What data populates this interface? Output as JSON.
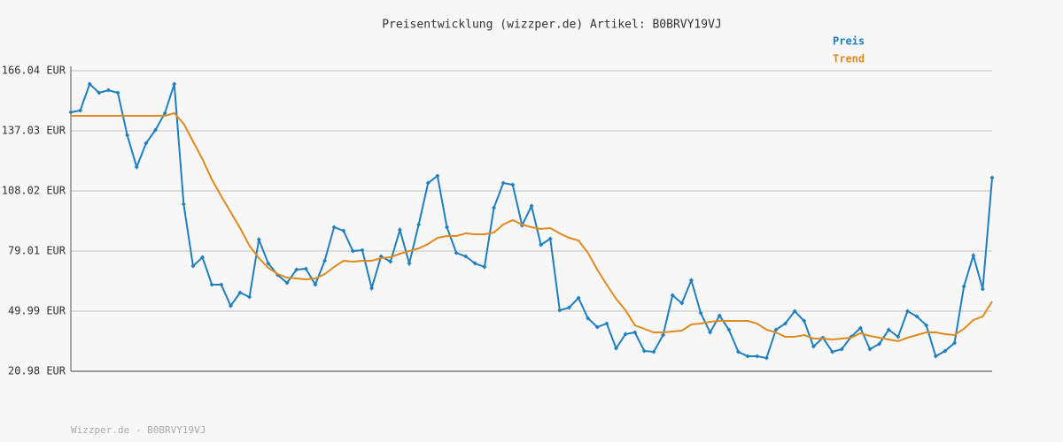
{
  "chart_data": {
    "type": "line",
    "title": "Preisentwicklung (wizzper.de) Artikel: B0BRVY19VJ",
    "footer": "Wizzper.de - B0BRVY19VJ",
    "ylim": [
      20.98,
      166.04
    ],
    "yticks": [
      {
        "value": 20.98,
        "label": "20.98 EUR"
      },
      {
        "value": 49.99,
        "label": "49.99 EUR"
      },
      {
        "value": 79.01,
        "label": "79.01 EUR"
      },
      {
        "value": 108.02,
        "label": "108.02 EUR"
      },
      {
        "value": 137.03,
        "label": "137.03 EUR"
      },
      {
        "value": 166.04,
        "label": "166.04 EUR"
      }
    ],
    "grid": true,
    "legend": "top-right",
    "series": [
      {
        "name": "Preis",
        "color": "#1f7fbf",
        "markers": true,
        "values": [
          145.99,
          146.84,
          159.64,
          155.37,
          156.65,
          155.37,
          134.89,
          119.54,
          131.05,
          137.45,
          145.56,
          159.64,
          101.62,
          71.75,
          76.02,
          62.79,
          62.79,
          52.55,
          58.95,
          56.82,
          84.55,
          73.03,
          67.48,
          63.64,
          70.04,
          70.47,
          62.79,
          74.31,
          90.52,
          88.82,
          79.0,
          79.43,
          61.08,
          76.44,
          73.88,
          89.24,
          73.03,
          91.8,
          111.86,
          115.27,
          90.52,
          78.15,
          76.44,
          73.03,
          71.32,
          99.91,
          111.86,
          111.0,
          91.38,
          100.76,
          81.99,
          84.98,
          50.42,
          51.7,
          56.39,
          46.58,
          42.31,
          44.02,
          32.07,
          38.9,
          39.75,
          30.79,
          30.37,
          38.47,
          57.67,
          53.83,
          64.92,
          49.14,
          39.75,
          47.86,
          41.03,
          30.37,
          28.23,
          28.23,
          27.38,
          41.03,
          44.02,
          49.99,
          45.3,
          32.93,
          37.19,
          30.37,
          31.65,
          37.62,
          41.89,
          31.65,
          34.21,
          41.03,
          37.62,
          49.99,
          47.43,
          43.16,
          28.23,
          30.79,
          34.63,
          61.94,
          76.87,
          60.66,
          114.42
        ]
      },
      {
        "name": "Trend",
        "color": "#e08a1e",
        "markers": false,
        "values": [
          144.28,
          144.28,
          144.28,
          144.28,
          144.28,
          144.28,
          144.28,
          144.28,
          144.28,
          144.28,
          144.28,
          145.56,
          140.44,
          131.91,
          123.37,
          113.56,
          105.46,
          97.78,
          90.1,
          81.56,
          75.59,
          70.9,
          67.91,
          66.2,
          65.78,
          65.35,
          65.78,
          67.91,
          71.32,
          74.31,
          73.88,
          74.31,
          74.31,
          75.59,
          76.02,
          77.72,
          79.0,
          80.28,
          82.42,
          85.4,
          86.26,
          86.26,
          87.54,
          87.11,
          87.11,
          87.96,
          91.8,
          93.94,
          91.8,
          90.52,
          89.67,
          90.1,
          87.54,
          85.4,
          84.12,
          78.15,
          70.04,
          62.79,
          55.96,
          50.42,
          43.16,
          41.46,
          39.75,
          39.75,
          40.18,
          40.6,
          43.59,
          44.02,
          44.87,
          45.3,
          45.3,
          45.3,
          45.3,
          44.02,
          41.03,
          39.75,
          37.62,
          37.62,
          38.47,
          36.77,
          36.77,
          36.34,
          36.77,
          37.19,
          39.33,
          38.04,
          37.19,
          36.34,
          35.49,
          37.19,
          38.47,
          39.75,
          39.75,
          38.9,
          38.47,
          41.46,
          45.73,
          47.43,
          54.68
        ]
      }
    ]
  }
}
